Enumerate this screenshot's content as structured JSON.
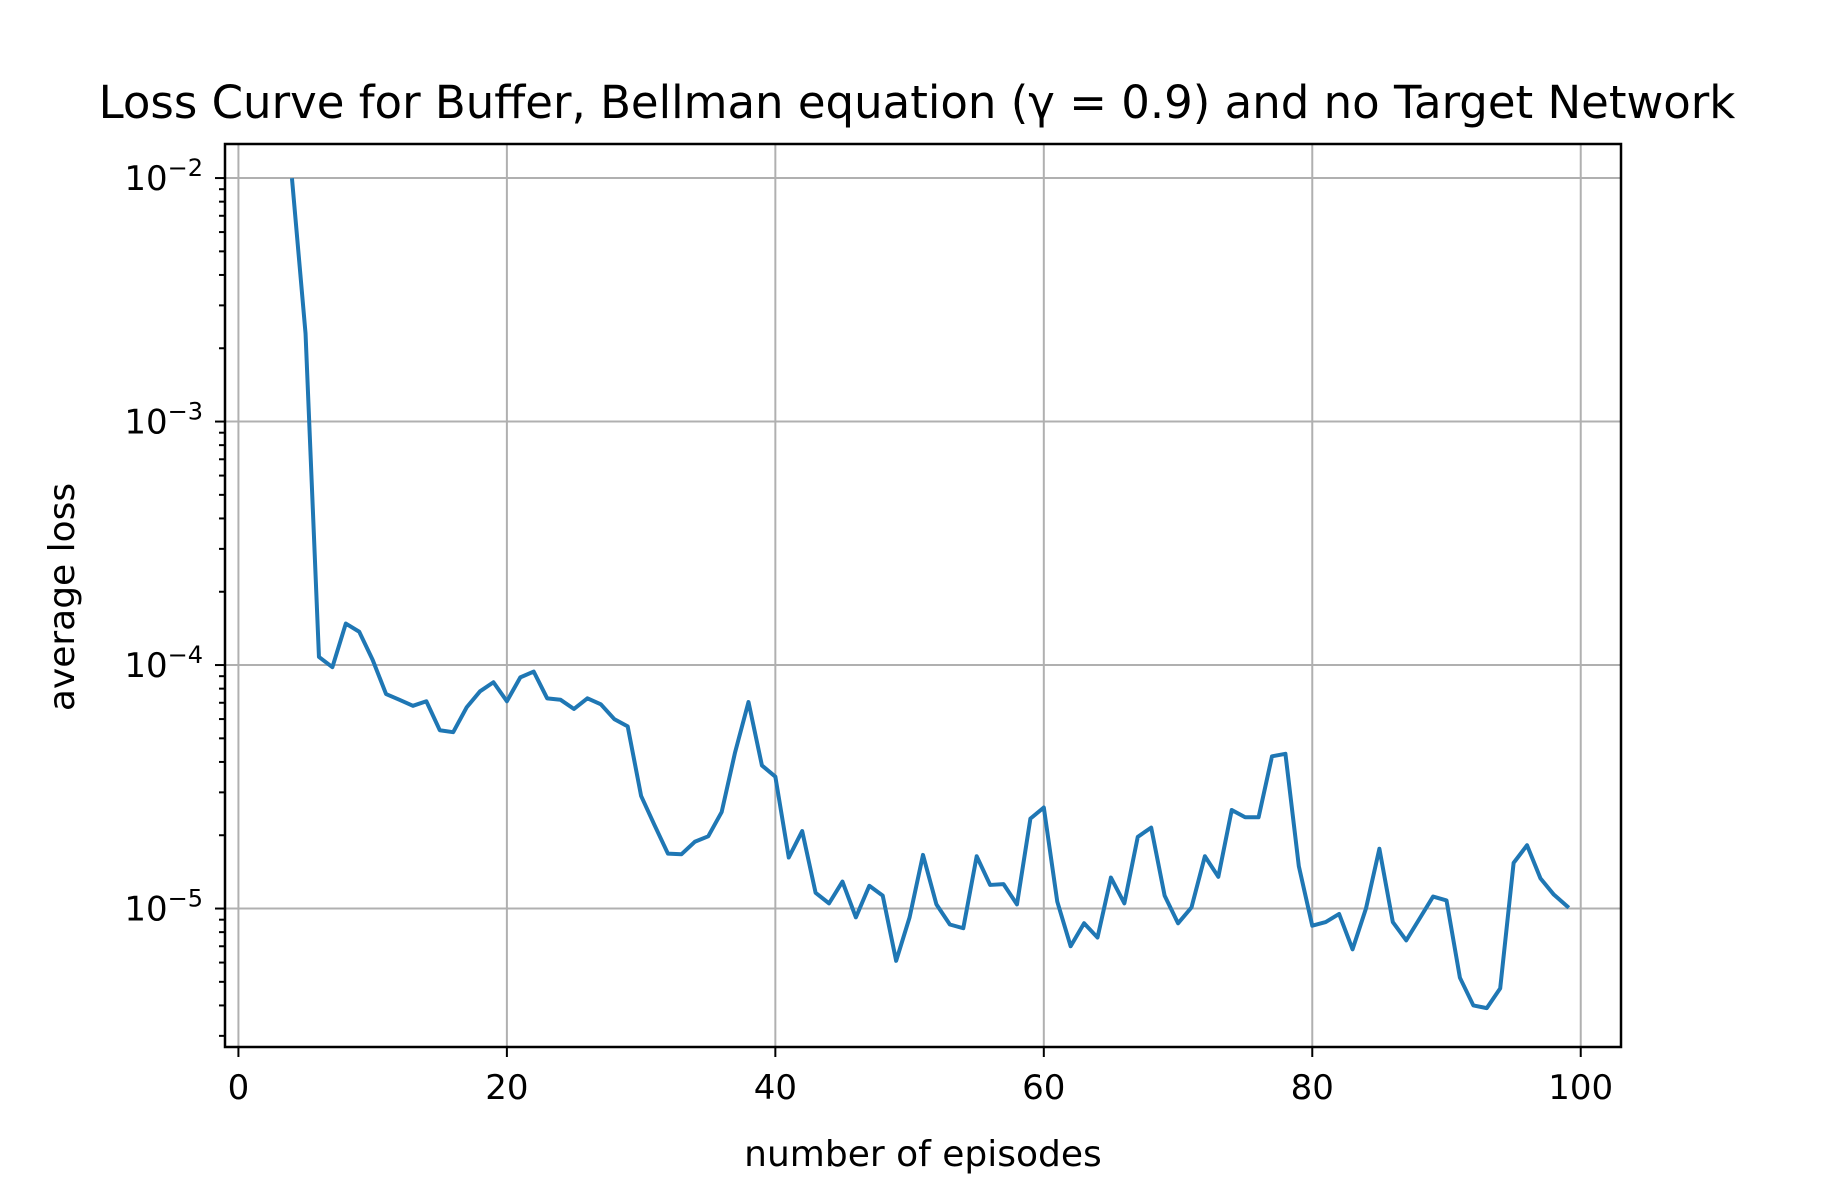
{
  "chart_data": {
    "type": "line",
    "title": "Loss Curve for Buffer, Bellman equation (γ = 0.9) and no Target Network",
    "xlabel": "number of episodes",
    "ylabel": "average loss",
    "xlim": [
      -1,
      103
    ],
    "ylim": [
      2.7e-06,
      0.0138
    ],
    "yscale": "log",
    "grid": true,
    "line_color": "#1f77b4",
    "x_ticks": [
      0,
      20,
      40,
      60,
      80,
      100
    ],
    "y_ticks": [
      {
        "base": "10",
        "exp": "−2",
        "value": 0.01
      },
      {
        "base": "10",
        "exp": "−3",
        "value": 0.001
      },
      {
        "base": "10",
        "exp": "−4",
        "value": 0.0001
      },
      {
        "base": "10",
        "exp": "−5",
        "value": 1e-05
      }
    ],
    "series": [
      {
        "x": [
          4,
          5,
          6,
          7,
          8,
          9,
          10,
          11,
          12,
          13,
          14,
          15,
          16,
          17,
          18,
          19,
          20,
          21,
          22,
          23,
          24,
          25,
          26,
          27,
          28,
          29,
          30,
          31,
          32,
          33,
          34,
          35,
          36,
          37,
          38,
          39,
          40,
          41,
          42,
          43,
          44,
          45,
          46,
          47,
          48,
          49,
          50,
          51,
          52,
          53,
          54,
          55,
          56,
          57,
          58,
          59,
          60,
          61,
          62,
          63,
          64,
          65,
          66,
          67,
          68,
          69,
          70,
          71,
          72,
          73,
          74,
          75,
          76,
          77,
          78,
          79,
          80,
          81,
          82,
          83,
          84,
          85,
          86,
          87,
          88,
          89,
          90,
          91,
          92,
          93,
          94,
          95,
          96,
          97,
          98,
          99
        ],
        "y": [
          0.0098,
          0.0023,
          0.000108,
          9.8e-05,
          0.000148,
          0.000137,
          0.000105,
          7.6e-05,
          7.2e-05,
          6.8e-05,
          7.1e-05,
          5.4e-05,
          5.3e-05,
          6.7e-05,
          7.8e-05,
          8.5e-05,
          7.1e-05,
          8.9e-05,
          9.4e-05,
          7.3e-05,
          7.2e-05,
          6.6e-05,
          7.3e-05,
          6.9e-05,
          6e-05,
          5.6e-05,
          2.9e-05,
          2.2e-05,
          1.68e-05,
          1.67e-05,
          1.88e-05,
          1.98e-05,
          2.49e-05,
          4.38e-05,
          7.05e-05,
          3.87e-05,
          3.48e-05,
          1.62e-05,
          2.08e-05,
          1.16e-05,
          1.05e-05,
          1.29e-05,
          9.2e-06,
          1.24e-05,
          1.13e-05,
          6.1e-06,
          9.2e-06,
          1.66e-05,
          1.04e-05,
          8.6e-06,
          8.3e-06,
          1.64e-05,
          1.25e-05,
          1.26e-05,
          1.04e-05,
          2.34e-05,
          2.6e-05,
          1.07e-05,
          7e-06,
          8.7e-06,
          7.6e-06,
          1.34e-05,
          1.05e-05,
          1.97e-05,
          2.15e-05,
          1.13e-05,
          8.7e-06,
          1.01e-05,
          1.64e-05,
          1.35e-05,
          2.54e-05,
          2.37e-05,
          2.37e-05,
          4.22e-05,
          4.32e-05,
          1.49e-05,
          8.5e-06,
          8.8e-06,
          9.5e-06,
          6.8e-06,
          1e-05,
          1.76e-05,
          8.8e-06,
          7.4e-06,
          9.1e-06,
          1.12e-05,
          1.08e-05,
          5.2e-06,
          4e-06,
          3.9e-06,
          4.7e-06,
          1.54e-05,
          1.82e-05,
          1.33e-05,
          1.14e-05,
          1.02e-05
        ]
      }
    ]
  }
}
